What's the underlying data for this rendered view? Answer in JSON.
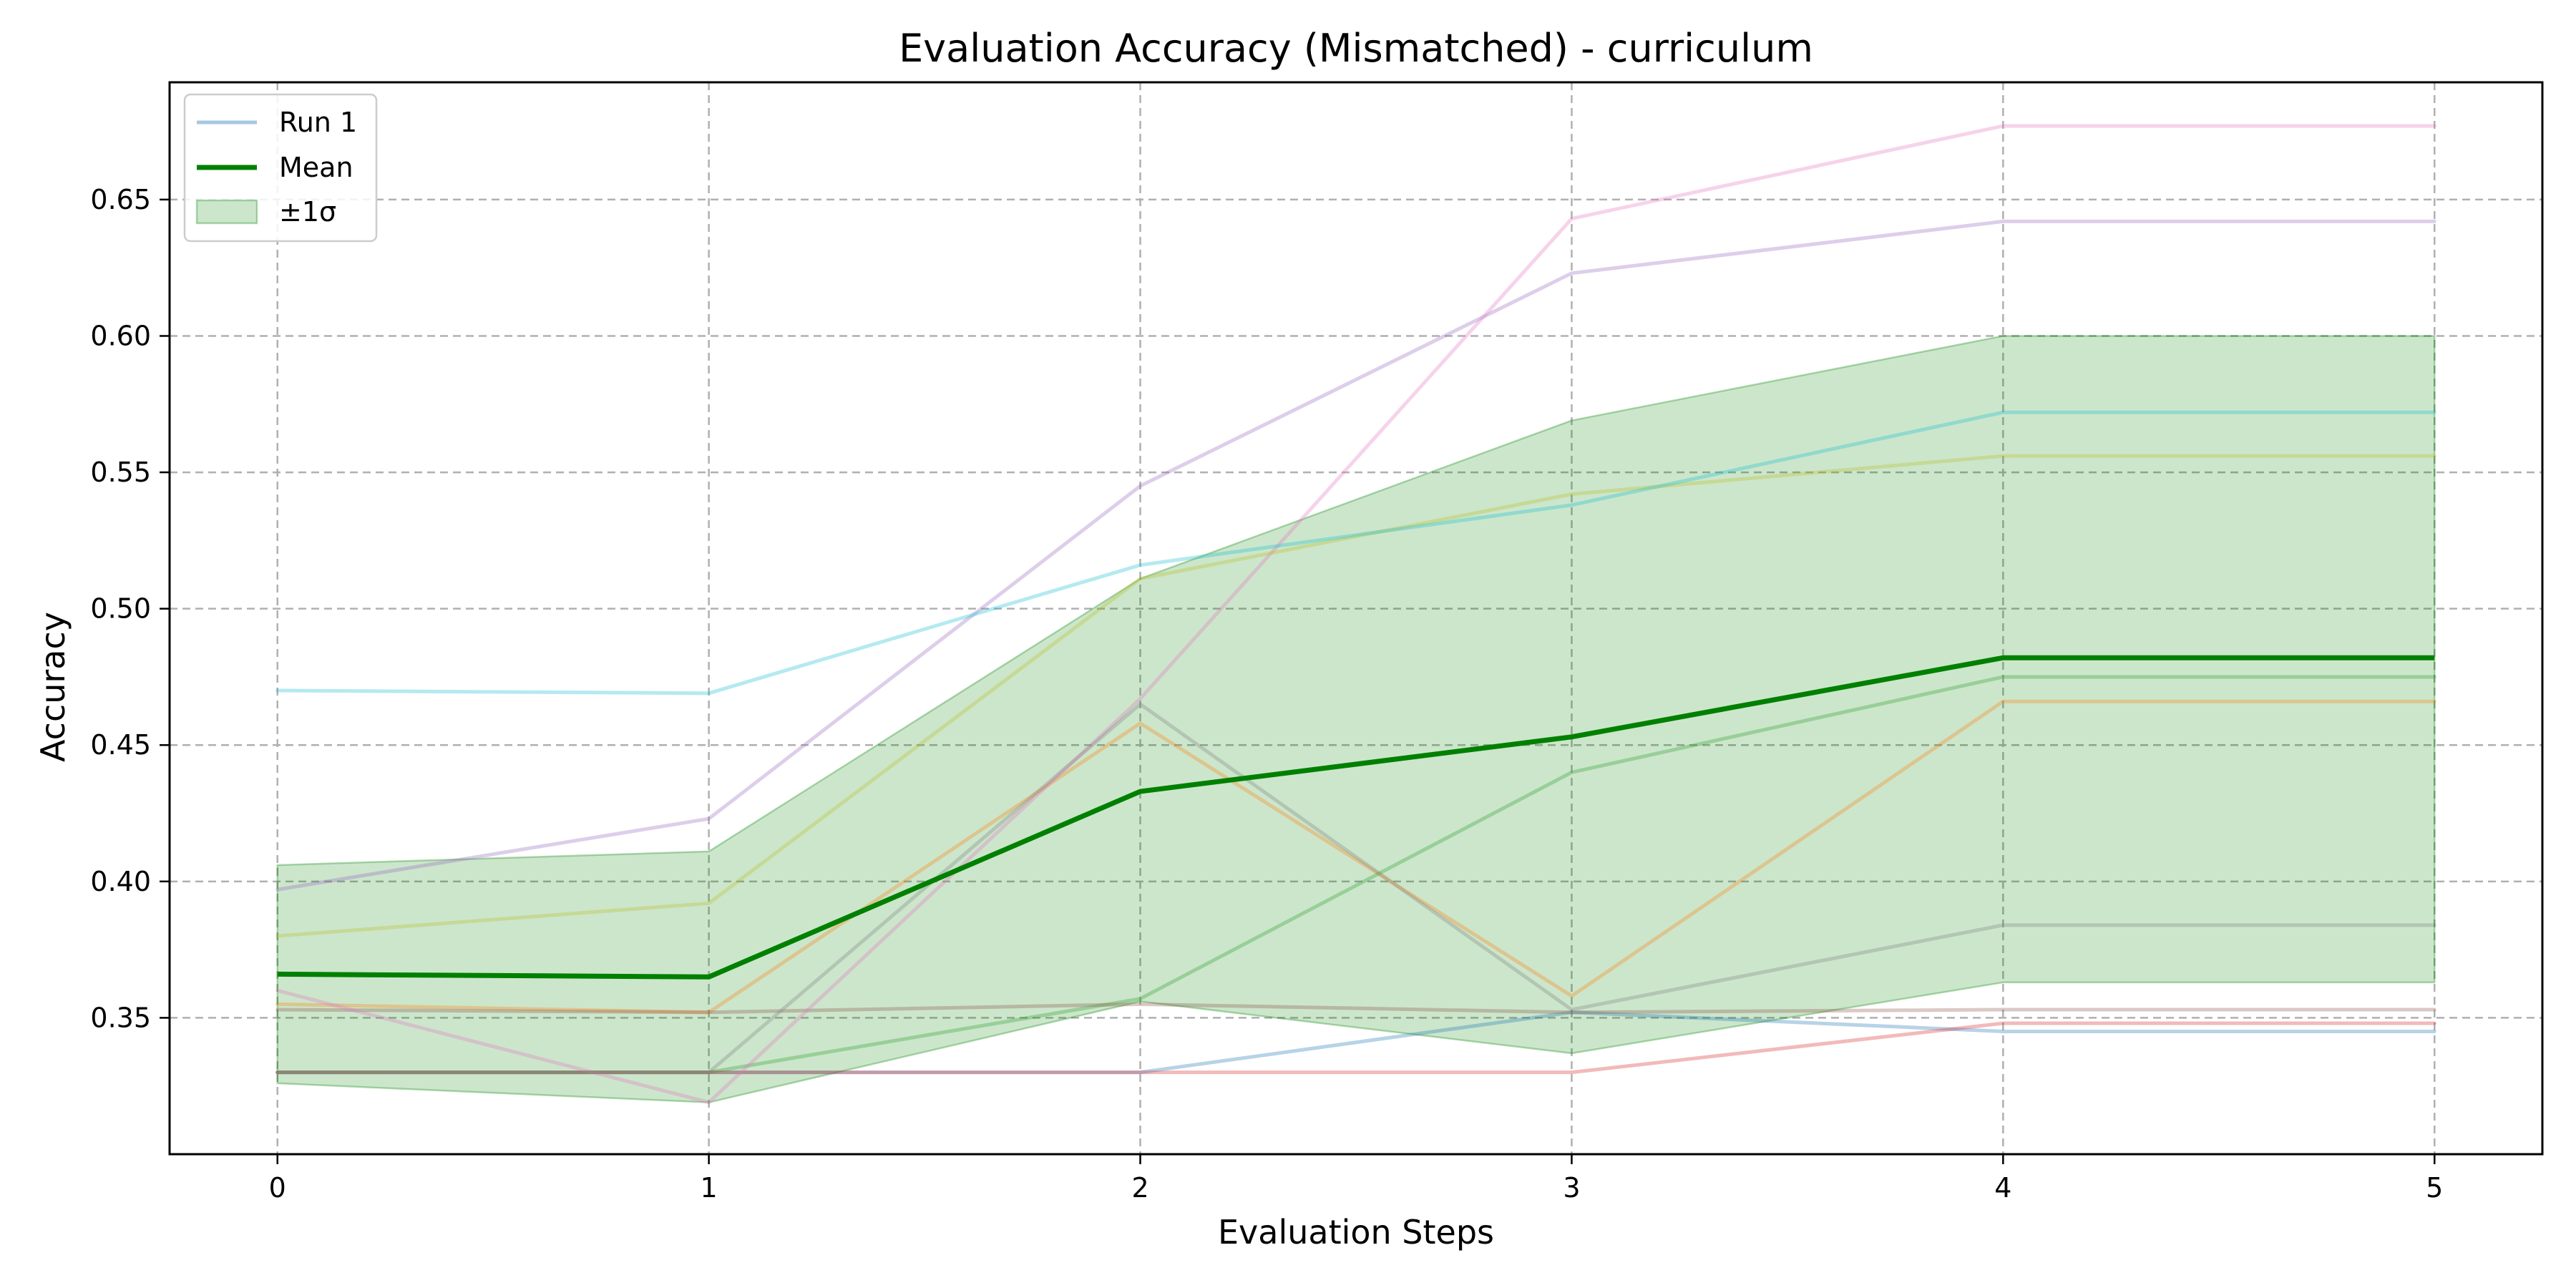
{
  "chart_data": {
    "type": "line",
    "title": "Evaluation Accuracy (Mismatched) - curriculum",
    "xlabel": "Evaluation Steps",
    "ylabel": "Accuracy",
    "x": [
      0,
      1,
      2,
      3,
      4,
      5
    ],
    "xticks": [
      "0",
      "1",
      "2",
      "3",
      "4",
      "5"
    ],
    "yticks": [
      "0.35",
      "0.40",
      "0.45",
      "0.50",
      "0.55",
      "0.60",
      "0.65"
    ],
    "xlim": [
      -0.25,
      5.25
    ],
    "ylim": [
      0.3,
      0.693
    ],
    "grid": true,
    "legend_position": "top-left",
    "legend": [
      {
        "label": "Run 1",
        "kind": "line"
      },
      {
        "label": "Mean",
        "kind": "line"
      },
      {
        "label": "±1σ",
        "kind": "band"
      }
    ],
    "runs": [
      {
        "name": "Run 1",
        "color": "#1f77b4",
        "values": [
          0.33,
          0.33,
          0.33,
          0.352,
          0.345,
          0.345
        ]
      },
      {
        "color": "#ff7f0e",
        "values": [
          0.355,
          0.352,
          0.458,
          0.358,
          0.466,
          0.466
        ]
      },
      {
        "color": "#2ca02c",
        "values": [
          0.33,
          0.33,
          0.357,
          0.44,
          0.475,
          0.475
        ]
      },
      {
        "color": "#d62728",
        "values": [
          0.33,
          0.33,
          0.33,
          0.33,
          0.348,
          0.348
        ]
      },
      {
        "color": "#9467bd",
        "values": [
          0.397,
          0.423,
          0.545,
          0.623,
          0.642,
          0.642
        ]
      },
      {
        "color": "#8c564b",
        "values": [
          0.353,
          0.352,
          0.355,
          0.352,
          0.353,
          0.353
        ]
      },
      {
        "color": "#e377c2",
        "values": [
          0.36,
          0.319,
          0.467,
          0.643,
          0.677,
          0.677
        ]
      },
      {
        "color": "#7f7f7f",
        "values": [
          0.33,
          0.33,
          0.465,
          0.353,
          0.384,
          0.384
        ]
      },
      {
        "color": "#bcbd22",
        "values": [
          0.38,
          0.392,
          0.511,
          0.542,
          0.556,
          0.556
        ]
      },
      {
        "color": "#17becf",
        "values": [
          0.47,
          0.469,
          0.516,
          0.538,
          0.572,
          0.572
        ]
      }
    ],
    "run_opacity": 0.32,
    "mean": {
      "name": "Mean",
      "color": "#008000",
      "values": [
        0.366,
        0.365,
        0.433,
        0.453,
        0.482,
        0.482
      ]
    },
    "band": {
      "name": "±1σ",
      "color": "#008000",
      "opacity": 0.2,
      "upper": [
        0.406,
        0.411,
        0.511,
        0.569,
        0.6,
        0.6
      ],
      "lower": [
        0.326,
        0.319,
        0.356,
        0.337,
        0.363,
        0.363
      ]
    }
  }
}
